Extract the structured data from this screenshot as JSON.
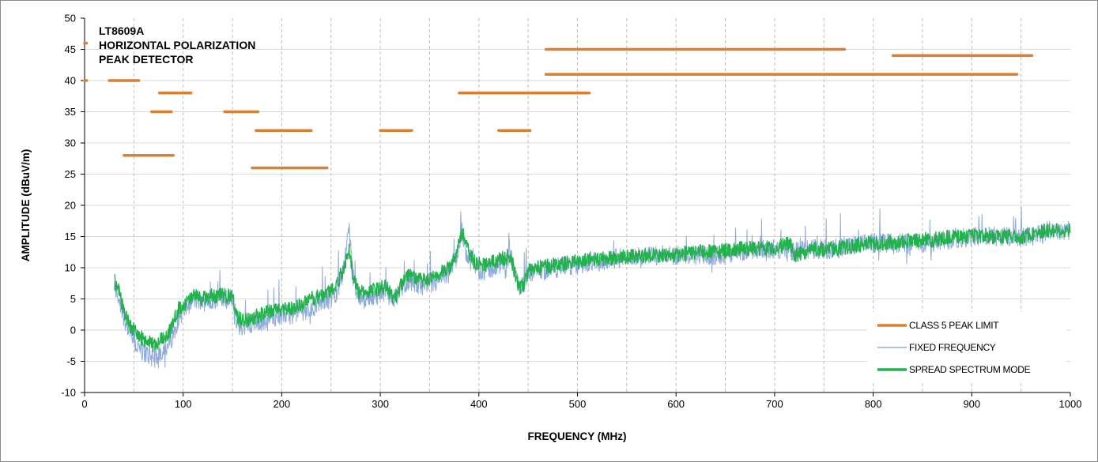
{
  "chart_data": {
    "type": "line",
    "title": "",
    "xlabel": "FREQUENCY (MHz)",
    "ylabel": "AMPLITUDE (dBuV/m)",
    "xlim": [
      0,
      1000
    ],
    "ylim": [
      -10,
      50
    ],
    "x_ticks": [
      0,
      100,
      200,
      300,
      400,
      500,
      600,
      700,
      800,
      900,
      1000
    ],
    "y_ticks": [
      -10,
      -5,
      0,
      5,
      10,
      15,
      20,
      25,
      30,
      35,
      40,
      45,
      50
    ],
    "x_minor_ticks": [
      50,
      150,
      250,
      350,
      450,
      550,
      650,
      750,
      850,
      950
    ],
    "grid": true,
    "annotation": [
      "LT8609A",
      "HORIZONTAL  POLARIZATION",
      "PEAK DETECTOR"
    ],
    "legend": {
      "placement": "bottom-right",
      "entries": [
        "CLASS 5 PEAK LIMIT",
        "FIXED FREQUENCY",
        "SPREAD SPECTRUM MODE"
      ]
    },
    "colors": {
      "limit": "#D98031",
      "fixed": "#8FAADC",
      "spread": "#21B24B"
    },
    "series": [
      {
        "name": "CLASS 5 PEAK LIMIT",
        "style": "horizontal segments",
        "segments": [
          {
            "x": [
              0,
              2
            ],
            "y": 46
          },
          {
            "x": [
              0,
              2
            ],
            "y": 40
          },
          {
            "x": [
              25,
              55
            ],
            "y": 40
          },
          {
            "x": [
              40,
              90
            ],
            "y": 28
          },
          {
            "x": [
              68,
              88
            ],
            "y": 35
          },
          {
            "x": [
              76,
              108
            ],
            "y": 38
          },
          {
            "x": [
              142,
              176
            ],
            "y": 35
          },
          {
            "x": [
              174,
              230
            ],
            "y": 32
          },
          {
            "x": [
              170,
              246
            ],
            "y": 26
          },
          {
            "x": [
              300,
              332
            ],
            "y": 32
          },
          {
            "x": [
              380,
              512
            ],
            "y": 38
          },
          {
            "x": [
              420,
              452
            ],
            "y": 32
          },
          {
            "x": [
              468,
              771
            ],
            "y": 45
          },
          {
            "x": [
              468,
              946
            ],
            "y": 41
          },
          {
            "x": [
              820,
              961
            ],
            "y": 44
          }
        ]
      },
      {
        "name": "FIXED FREQUENCY",
        "x": [
          30,
          35,
          40,
          45,
          50,
          55,
          60,
          65,
          70,
          75,
          80,
          85,
          90,
          95,
          100,
          105,
          110,
          120,
          130,
          140,
          150,
          155,
          160,
          170,
          180,
          190,
          200,
          210,
          220,
          230,
          240,
          250,
          255,
          260,
          265,
          268,
          272,
          278,
          285,
          295,
          305,
          315,
          320,
          325,
          330,
          340,
          350,
          360,
          370,
          378,
          383,
          388,
          395,
          405,
          415,
          425,
          432,
          435,
          440,
          445,
          450,
          460,
          480,
          500,
          520,
          540,
          560,
          580,
          600,
          620,
          640,
          660,
          680,
          700,
          715,
          720,
          740,
          760,
          780,
          800,
          820,
          840,
          860,
          880,
          900,
          920,
          940,
          955,
          960,
          980,
          1000
        ],
        "values": [
          7,
          5,
          2,
          0,
          -2,
          -3,
          -3.5,
          -4,
          -4.5,
          -4,
          -3,
          -2.5,
          -1,
          2,
          3,
          4,
          5,
          4.5,
          5,
          5,
          5,
          1,
          0.5,
          1,
          1.5,
          2,
          2.5,
          2.5,
          3,
          3.5,
          4.5,
          5,
          6,
          8,
          12,
          17,
          9,
          5,
          5,
          5.5,
          6,
          5,
          6.5,
          7.5,
          8,
          7,
          7,
          8,
          9,
          12,
          16,
          12,
          10,
          9.5,
          10,
          11,
          12,
          10,
          7,
          7,
          9,
          9.5,
          10,
          10.5,
          11,
          11.5,
          12,
          12,
          12,
          12,
          12,
          12.5,
          13,
          13,
          13,
          12.5,
          13,
          13,
          13.5,
          14,
          14,
          14,
          14,
          14.5,
          15,
          15,
          15,
          15,
          15,
          16,
          16
        ]
      },
      {
        "name": "SPREAD SPECTRUM MODE",
        "x": [
          30,
          35,
          40,
          45,
          50,
          55,
          60,
          65,
          70,
          75,
          80,
          85,
          90,
          95,
          100,
          105,
          110,
          120,
          130,
          140,
          150,
          155,
          160,
          170,
          180,
          190,
          200,
          210,
          220,
          230,
          240,
          250,
          255,
          260,
          265,
          268,
          272,
          278,
          285,
          295,
          305,
          315,
          320,
          325,
          330,
          340,
          350,
          360,
          370,
          378,
          383,
          388,
          395,
          405,
          415,
          425,
          432,
          435,
          440,
          445,
          450,
          460,
          480,
          500,
          520,
          540,
          560,
          580,
          600,
          620,
          640,
          660,
          680,
          700,
          715,
          720,
          740,
          760,
          780,
          800,
          820,
          840,
          860,
          880,
          900,
          920,
          940,
          955,
          960,
          980,
          1000
        ],
        "values": [
          8,
          6,
          3,
          1,
          0,
          -1,
          -1.5,
          -2,
          -2.5,
          -2,
          -1,
          -0.5,
          1,
          3.5,
          4,
          4.5,
          5.5,
          5,
          5.5,
          5.5,
          5.5,
          2,
          1.5,
          2,
          2.5,
          3,
          3.5,
          3.5,
          4,
          5,
          5.5,
          6.5,
          7,
          9,
          11,
          13,
          9,
          6,
          6,
          6.5,
          7,
          5,
          7,
          8.5,
          9,
          8,
          8,
          9,
          10,
          13,
          16,
          13,
          11,
          10.5,
          11,
          11.5,
          12,
          10,
          7,
          7,
          9.5,
          10,
          10.5,
          11,
          11.5,
          11.5,
          12,
          12,
          12,
          12.5,
          12.5,
          13,
          13,
          13,
          14,
          12,
          13,
          13,
          13.5,
          14,
          14,
          14.5,
          14.5,
          15,
          15,
          15,
          15,
          15,
          15.5,
          16,
          16
        ]
      }
    ]
  }
}
